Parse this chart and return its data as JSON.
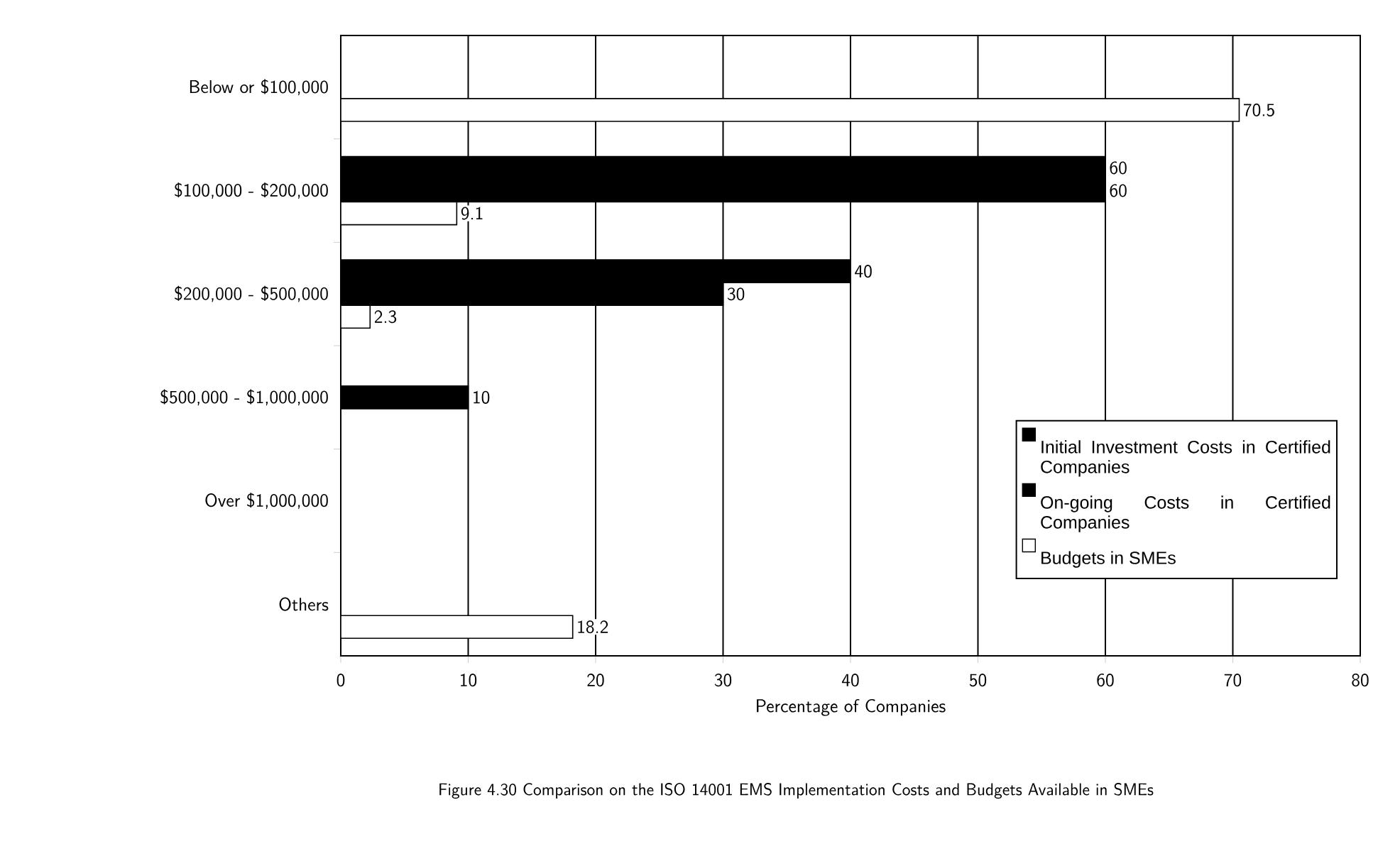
{
  "chart_data": {
    "type": "bar",
    "orientation": "horizontal",
    "categories": [
      "Below or $100,000",
      "$100,000 - $200,000",
      "$200,000 - $500,000",
      "$500,000 - $1,000,000",
      "Over $1,000,000",
      "Others"
    ],
    "series": [
      {
        "name": "Initial Investment Costs in Certified Companies",
        "color": "#000000",
        "values": [
          null,
          60,
          40,
          null,
          null,
          null
        ]
      },
      {
        "name": "On-going Costs in Certified Companies",
        "color": "#000000",
        "values": [
          null,
          60,
          30,
          10,
          null,
          null
        ]
      },
      {
        "name": "Budgets in SMEs",
        "color": "#ffffff",
        "values": [
          70.5,
          9.1,
          2.3,
          null,
          null,
          18.2
        ]
      }
    ],
    "xlabel": "Percentage of Companies",
    "xlim": [
      0,
      80
    ],
    "xticks": [
      0,
      10,
      20,
      30,
      40,
      50,
      60,
      70,
      80
    ],
    "grid": "x",
    "legend": "right",
    "data_labels": true,
    "annotations": [
      "Figure 4.30  Comparison on the ISO 14001 EMS Implementation Costs and Budgets Available in SMEs"
    ]
  }
}
